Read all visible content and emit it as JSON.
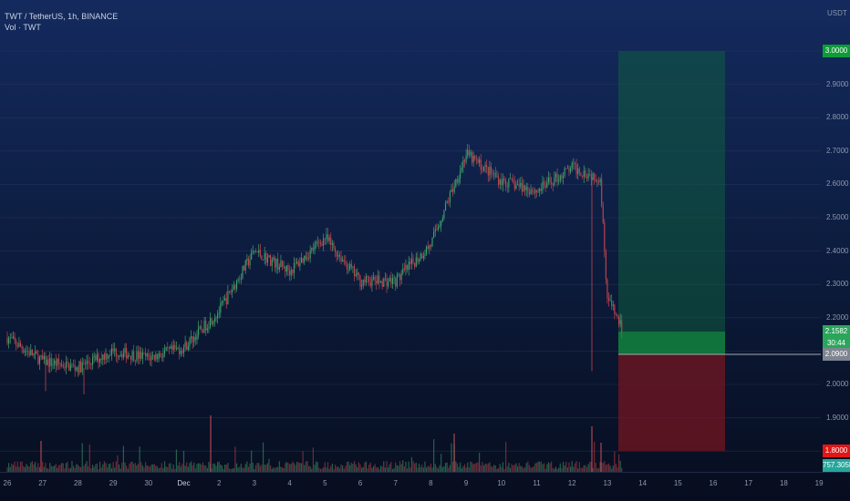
{
  "header": {
    "title": "TWT / TetherUS, 1h, BINANCE",
    "indicator": "Vol · TWT"
  },
  "price_unit": "USDT",
  "colors": {
    "candle_up": "#3fa36b",
    "candle_down": "#c2444e",
    "profit_zone": "#0f6b3d",
    "loss_zone": "#7a1620",
    "target_label": "#0c9d36",
    "stop_label": "#e21616",
    "entry_label": "#7e8490",
    "current_label": "#2aa65b",
    "volume_label": "#26a69a"
  },
  "chart_data": {
    "type": "candlestick",
    "title": "TWT / TetherUS, 1h, BINANCE",
    "y_axis": {
      "ticks": [
        "2.9000",
        "2.8000",
        "2.7000",
        "2.6000",
        "2.5000",
        "2.4000",
        "2.3000",
        "2.2000",
        "2.0000",
        "1.9000"
      ],
      "range": [
        1.75,
        3.14
      ]
    },
    "x_axis": {
      "ticks": [
        "26",
        "27",
        "28",
        "29",
        "30",
        "Dec",
        "2",
        "3",
        "4",
        "5",
        "6",
        "7",
        "8",
        "9",
        "10",
        "11",
        "12",
        "13",
        "14",
        "15",
        "16",
        "17",
        "18",
        "19"
      ]
    },
    "price_path": [
      {
        "date": "26",
        "price": 2.14
      },
      {
        "date": "27",
        "price": 2.07
      },
      {
        "date": "28",
        "price": 2.05
      },
      {
        "date": "29",
        "price": 2.1
      },
      {
        "date": "30",
        "price": 2.08
      },
      {
        "date": "Dec",
        "price": 2.11
      },
      {
        "date": "2",
        "price": 2.22
      },
      {
        "date": "3",
        "price": 2.4
      },
      {
        "date": "4",
        "price": 2.34
      },
      {
        "date": "5",
        "price": 2.44
      },
      {
        "date": "6",
        "price": 2.31
      },
      {
        "date": "7",
        "price": 2.31
      },
      {
        "date": "8",
        "price": 2.42
      },
      {
        "date": "9",
        "price": 2.69
      },
      {
        "date": "10",
        "price": 2.61
      },
      {
        "date": "11",
        "price": 2.58
      },
      {
        "date": "12",
        "price": 2.65
      },
      {
        "date": "12",
        "price": 2.62
      },
      {
        "date": "13",
        "price": 2.26
      },
      {
        "date": "13",
        "price": 2.16
      }
    ],
    "position": {
      "target": "3.0000",
      "current": "2.1582",
      "countdown": "30:44",
      "entry": "2.0900",
      "stop": "1.8000"
    },
    "volume": {
      "series_name": "Vol · TWT",
      "last_value": "757.305K"
    },
    "grid": true
  }
}
